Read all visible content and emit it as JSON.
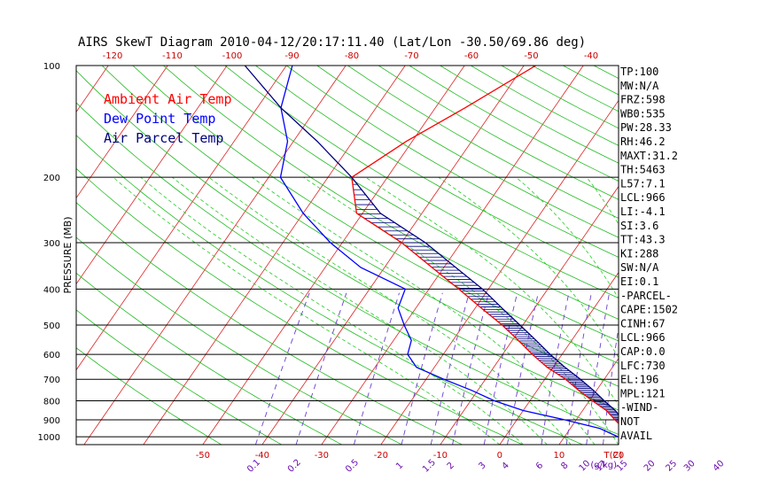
{
  "chart_data": {
    "type": "line",
    "title": "AIRS SkewT Diagram 2010-04-12/20:17:11.40 (Lat/Lon -30.50/69.86 deg)",
    "ylabel": "PRESSURE (MB)",
    "xlabel": "T(C)",
    "mixing_ratio_unit": "(g/kg)",
    "pressure_ticks": [
      100,
      200,
      300,
      400,
      500,
      600,
      700,
      800,
      900,
      1000
    ],
    "bottom_temp_ticks": [
      -50,
      -40,
      -30,
      -20,
      -10,
      0,
      10,
      20,
      30,
      40
    ],
    "top_temp_ticks": [
      -120,
      -110,
      -100,
      -90,
      -80,
      -70,
      -60,
      -50,
      -40
    ],
    "mixing_ratio_ticks": [
      "0.1",
      "0.2",
      "0.5",
      "1",
      "1.5",
      "2",
      "3",
      "4",
      "6",
      "8",
      "10",
      "12",
      "15",
      "20",
      "25",
      "30",
      "40"
    ],
    "legend": [
      {
        "name": "Ambient Air Temp",
        "color": "#ff0000"
      },
      {
        "name": "Dew Point Temp",
        "color": "#0000ff"
      },
      {
        "name": "Air Parcel Temp",
        "color": "#000080"
      }
    ],
    "series": [
      {
        "name": "Ambient Air Temp",
        "color": "#ff0000",
        "points": [
          [
            1000,
            23
          ],
          [
            950,
            19
          ],
          [
            900,
            16.5
          ],
          [
            850,
            14
          ],
          [
            800,
            10.5
          ],
          [
            750,
            7
          ],
          [
            700,
            3.5
          ],
          [
            650,
            -1
          ],
          [
            600,
            -5
          ],
          [
            550,
            -9
          ],
          [
            500,
            -13.5
          ],
          [
            450,
            -19
          ],
          [
            400,
            -25
          ],
          [
            350,
            -32
          ],
          [
            300,
            -40
          ],
          [
            250,
            -51
          ],
          [
            200,
            -56
          ],
          [
            160,
            -51
          ],
          [
            130,
            -45
          ],
          [
            100,
            -38
          ]
        ]
      },
      {
        "name": "Dew Point Temp",
        "color": "#0000ff",
        "points": [
          [
            1000,
            19
          ],
          [
            950,
            15
          ],
          [
            900,
            8
          ],
          [
            850,
            0
          ],
          [
            800,
            -6
          ],
          [
            750,
            -11
          ],
          [
            700,
            -17
          ],
          [
            650,
            -23
          ],
          [
            600,
            -26
          ],
          [
            550,
            -27
          ],
          [
            500,
            -30
          ],
          [
            450,
            -33
          ],
          [
            400,
            -34
          ],
          [
            350,
            -44
          ],
          [
            300,
            -52
          ],
          [
            250,
            -60
          ],
          [
            200,
            -68
          ],
          [
            160,
            -71
          ],
          [
            130,
            -76
          ],
          [
            100,
            -79
          ]
        ]
      },
      {
        "name": "Air Parcel Temp",
        "color": "#000080",
        "points": [
          [
            1000,
            23
          ],
          [
            966,
            20.5
          ],
          [
            900,
            17.8
          ],
          [
            850,
            15.5
          ],
          [
            800,
            12.5
          ],
          [
            750,
            9.5
          ],
          [
            700,
            6
          ],
          [
            650,
            2
          ],
          [
            600,
            -2
          ],
          [
            550,
            -6
          ],
          [
            500,
            -10.5
          ],
          [
            450,
            -15.5
          ],
          [
            400,
            -21
          ],
          [
            350,
            -28
          ],
          [
            300,
            -36
          ],
          [
            250,
            -47
          ],
          [
            200,
            -56
          ],
          [
            160,
            -66
          ],
          [
            130,
            -76
          ],
          [
            100,
            -87
          ]
        ]
      }
    ],
    "ylim": [
      1050,
      100
    ],
    "xlim": [
      -52,
      42
    ],
    "grid": true,
    "legend_position": "top-left"
  },
  "indices": [
    "TP:100",
    "MW:N/A",
    "FRZ:598",
    "WB0:535",
    "PW:28.33",
    "RH:46.2",
    "MAXT:31.2",
    "TH:5463",
    "L57:7.1",
    "LCL:966",
    "LI:-4.1",
    "SI:3.6",
    "TT:43.3",
    "KI:288",
    "SW:N/A",
    "EI:0.1",
    "-PARCEL-",
    "CAPE:1502",
    "CINH:67",
    "LCL:966",
    "CAP:0.0",
    "LFC:730",
    "EL:196",
    "MPL:121",
    "-WIND-",
    "NOT",
    "AVAIL"
  ]
}
